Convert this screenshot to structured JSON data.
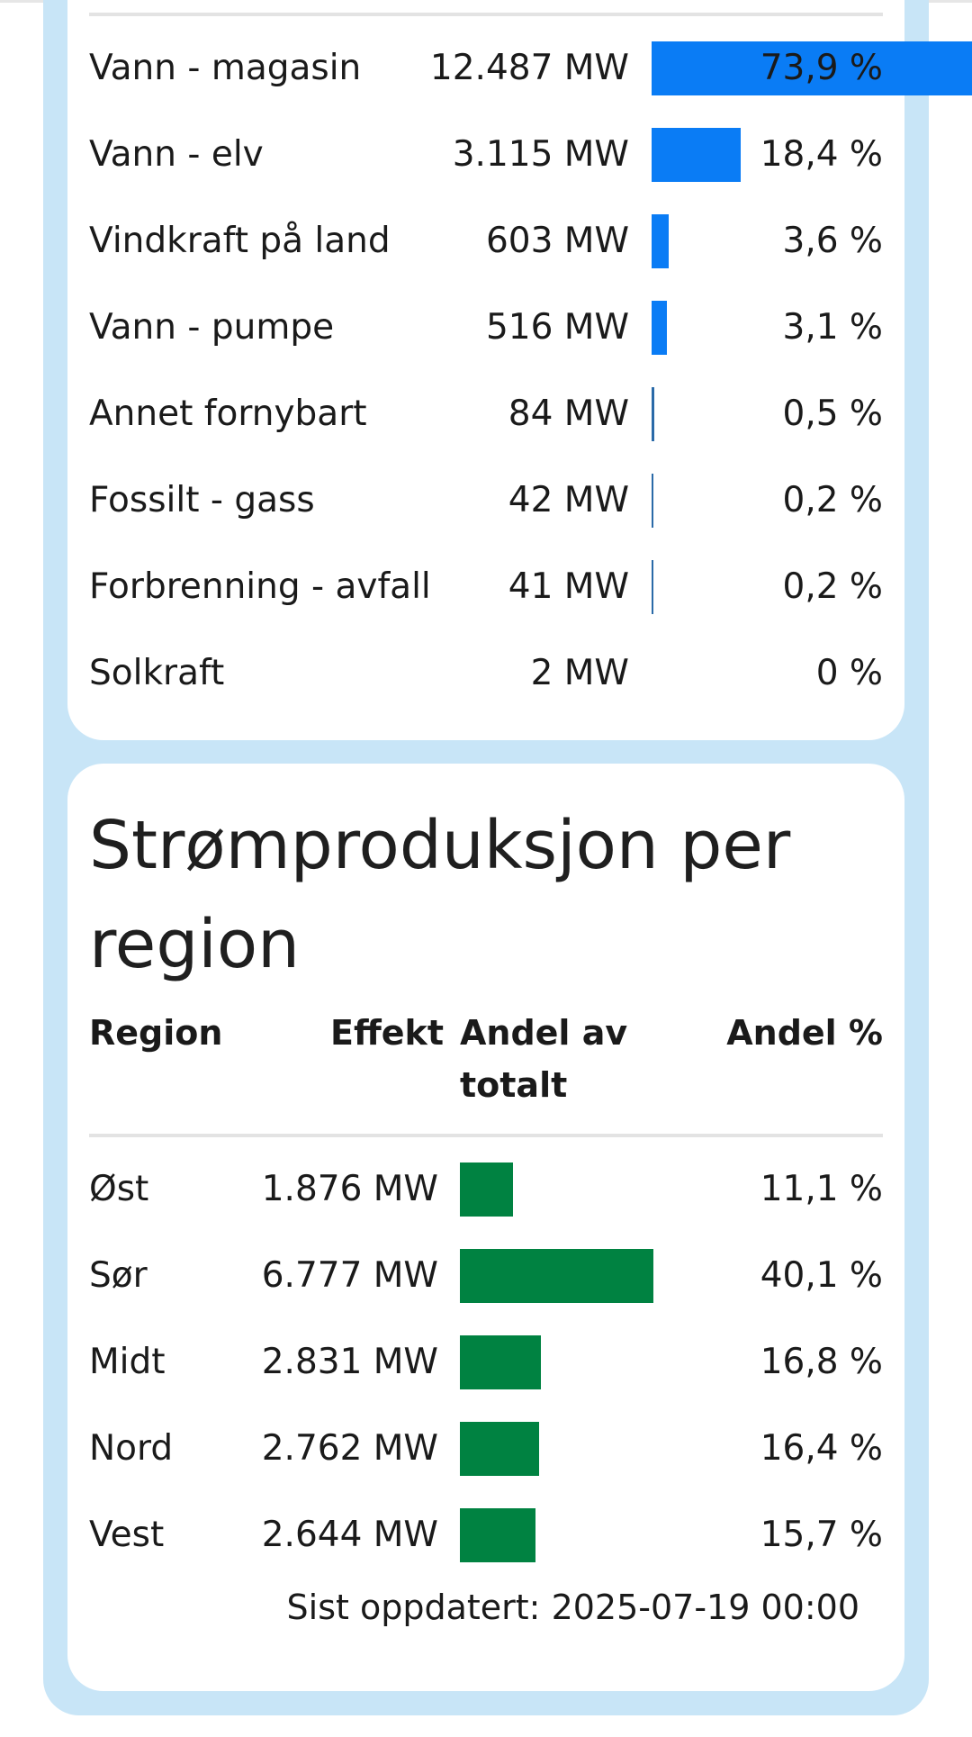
{
  "production_by_type": {
    "rows": [
      {
        "name": "Vann - magasin",
        "effect": "12.487 MW",
        "share": 73.9,
        "share_label": "73,9 %"
      },
      {
        "name": "Vann - elv",
        "effect": "3.115 MW",
        "share": 18.4,
        "share_label": "18,4 %"
      },
      {
        "name": "Vindkraft på land",
        "effect": "603 MW",
        "share": 3.6,
        "share_label": "3,6 %"
      },
      {
        "name": "Vann - pumpe",
        "effect": "516 MW",
        "share": 3.1,
        "share_label": "3,1 %"
      },
      {
        "name": "Annet fornybart",
        "effect": "84 MW",
        "share": 0.5,
        "share_label": "0,5 %"
      },
      {
        "name": "Fossilt - gass",
        "effect": "42 MW",
        "share": 0.2,
        "share_label": "0,2 %"
      },
      {
        "name": "Forbrenning - avfall",
        "effect": "41 MW",
        "share": 0.2,
        "share_label": "0,2 %"
      },
      {
        "name": "Solkraft",
        "effect": "2 MW",
        "share": 0,
        "share_label": "0 %"
      }
    ],
    "bar_color": "#0a7cf5"
  },
  "production_by_region": {
    "title": "Strømproduksjon per region",
    "headers": {
      "region": "Region",
      "effect": "Effekt",
      "share_bar": "Andel av totalt",
      "share_pct": "Andel %"
    },
    "rows": [
      {
        "name": "Øst",
        "effect": "1.876 MW",
        "share": 11.1,
        "share_label": "11,1 %"
      },
      {
        "name": "Sør",
        "effect": "6.777 MW",
        "share": 40.1,
        "share_label": "40,1 %"
      },
      {
        "name": "Midt",
        "effect": "2.831 MW",
        "share": 16.8,
        "share_label": "16,8 %"
      },
      {
        "name": "Nord",
        "effect": "2.762 MW",
        "share": 16.4,
        "share_label": "16,4 %"
      },
      {
        "name": "Vest",
        "effect": "2.644 MW",
        "share": 15.7,
        "share_label": "15,7 %"
      }
    ],
    "bar_color": "#008241",
    "last_updated": "Sist oppdatert: 2025-07-19 00:00"
  },
  "colors": {
    "frame": "#c8e5f7",
    "card": "#ffffff"
  }
}
